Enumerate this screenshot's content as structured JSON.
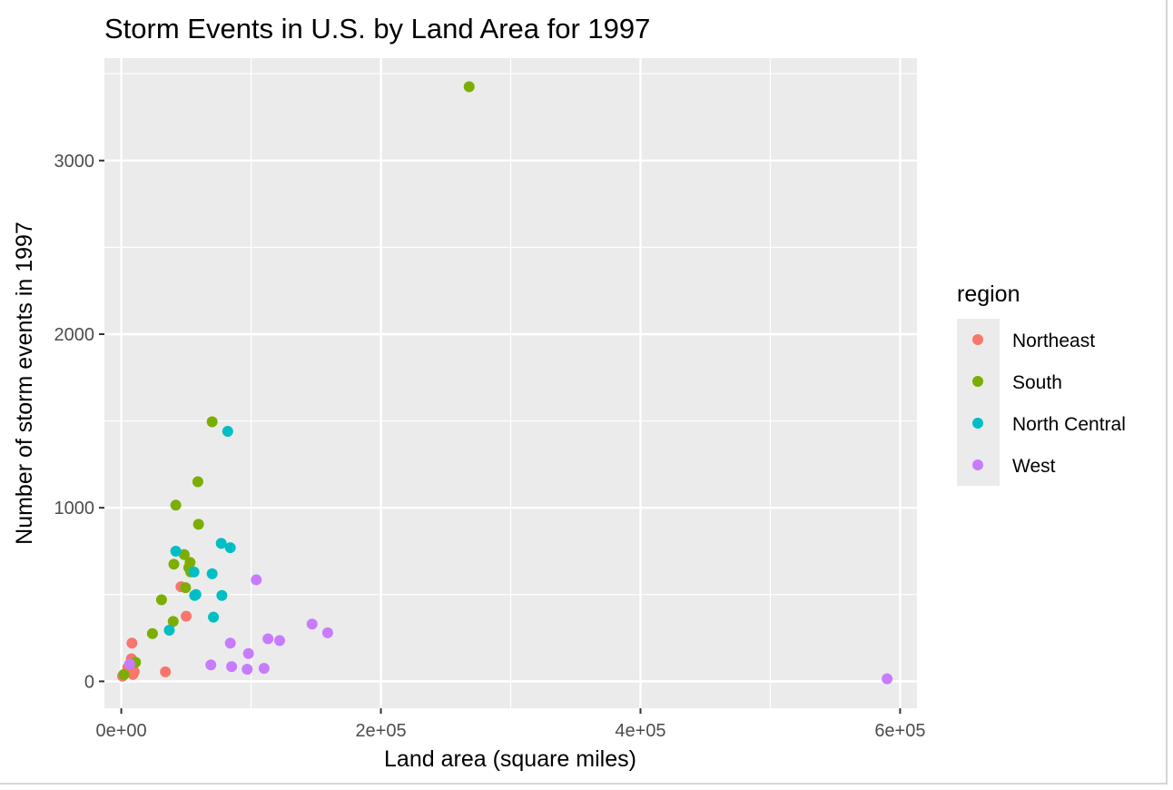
{
  "chart_data": {
    "type": "scatter",
    "title": "Storm Events in U.S. by Land Area for 1997",
    "xlabel": "Land area (square miles)",
    "ylabel": "Number of storm events in 1997",
    "xlim": [
      -13000,
      613000
    ],
    "ylim": [
      -155,
      3590
    ],
    "x_ticks": [
      0,
      200000,
      400000,
      600000
    ],
    "x_tick_labels": [
      "0e+00",
      "2e+05",
      "4e+05",
      "6e+05"
    ],
    "y_ticks": [
      0,
      1000,
      2000,
      3000
    ],
    "y_tick_labels": [
      "0",
      "1000",
      "2000",
      "3000"
    ],
    "grid": true,
    "legend": {
      "title": "region",
      "placement": "right"
    },
    "colors": {
      "panel": "#EBEBEB",
      "grid": "#FFFFFF",
      "Northeast": "#F8766D",
      "South": "#7CAE00",
      "North Central": "#00BFC4",
      "West": "#C77CFF"
    },
    "series": [
      {
        "name": "Northeast",
        "points": [
          [
            1000,
            30
          ],
          [
            1500,
            35
          ],
          [
            5000,
            80
          ],
          [
            7800,
            130
          ],
          [
            8200,
            220
          ],
          [
            9500,
            60
          ],
          [
            9000,
            40
          ],
          [
            10000,
            55
          ],
          [
            34000,
            55
          ],
          [
            46000,
            545
          ],
          [
            50000,
            375
          ]
        ]
      },
      {
        "name": "South",
        "points": [
          [
            2000,
            40
          ],
          [
            11000,
            110
          ],
          [
            24000,
            275
          ],
          [
            31000,
            470
          ],
          [
            40000,
            345
          ],
          [
            40500,
            675
          ],
          [
            42000,
            1015
          ],
          [
            48500,
            730
          ],
          [
            49500,
            540
          ],
          [
            52000,
            655
          ],
          [
            53000,
            685
          ],
          [
            53500,
            630
          ],
          [
            59000,
            1150
          ],
          [
            59500,
            905
          ],
          [
            70000,
            1495
          ],
          [
            268000,
            3425
          ]
        ]
      },
      {
        "name": "North Central",
        "points": [
          [
            37000,
            295
          ],
          [
            42000,
            750
          ],
          [
            56000,
            630
          ],
          [
            56500,
            495
          ],
          [
            57500,
            500
          ],
          [
            70000,
            620
          ],
          [
            71000,
            370
          ],
          [
            77000,
            795
          ],
          [
            77500,
            495
          ],
          [
            82000,
            1440
          ],
          [
            84000,
            770
          ]
        ]
      },
      {
        "name": "West",
        "points": [
          [
            6500,
            100
          ],
          [
            69000,
            95
          ],
          [
            84000,
            220
          ],
          [
            85000,
            85
          ],
          [
            97000,
            70
          ],
          [
            98000,
            160
          ],
          [
            104000,
            585
          ],
          [
            110000,
            75
          ],
          [
            113000,
            245
          ],
          [
            122000,
            235
          ],
          [
            147000,
            330
          ],
          [
            159000,
            280
          ],
          [
            590000,
            15
          ]
        ]
      }
    ]
  }
}
